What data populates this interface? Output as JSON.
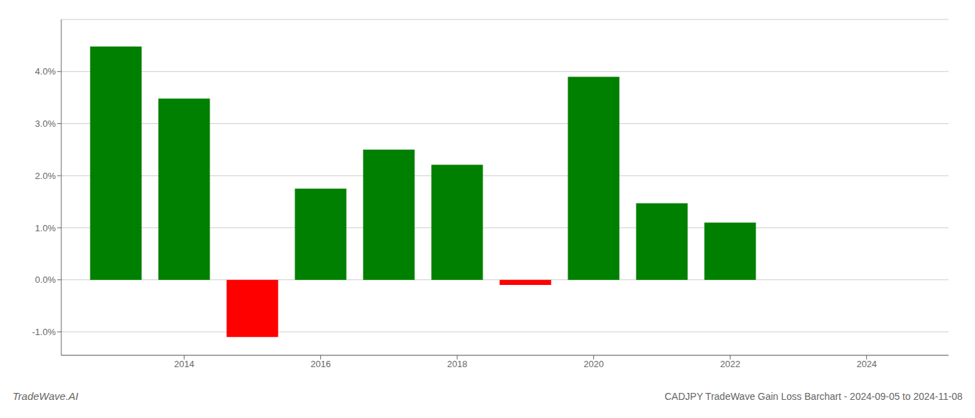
{
  "chart_data": {
    "type": "bar",
    "x": [
      2013,
      2014,
      2015,
      2016,
      2017,
      2018,
      2019,
      2020,
      2021,
      2022,
      2023
    ],
    "values": [
      4.48,
      3.48,
      -1.1,
      1.75,
      2.5,
      2.21,
      -0.1,
      3.9,
      1.47,
      1.1,
      0.0
    ],
    "colors": [
      "#008000",
      "#008000",
      "#ff0000",
      "#008000",
      "#008000",
      "#008000",
      "#ff0000",
      "#008000",
      "#008000",
      "#008000",
      null
    ],
    "xlim": [
      2012.2,
      2025.2
    ],
    "xticks": [
      2014,
      2016,
      2018,
      2020,
      2022,
      2024
    ],
    "ylim": [
      -1.45,
      5.0
    ],
    "yticks": [
      {
        "value": -1.0,
        "label": "-1.0%"
      },
      {
        "value": 0.0,
        "label": "0.0%"
      },
      {
        "value": 1.0,
        "label": "1.0%"
      },
      {
        "value": 2.0,
        "label": "2.0%"
      },
      {
        "value": 3.0,
        "label": "3.0%"
      },
      {
        "value": 4.0,
        "label": "4.0%"
      }
    ],
    "grid": true,
    "annotations": [
      "TradeWave.AI",
      "CADJPY TradeWave Gain Loss Barchart - 2024-09-05 to 2024-11-08"
    ]
  }
}
